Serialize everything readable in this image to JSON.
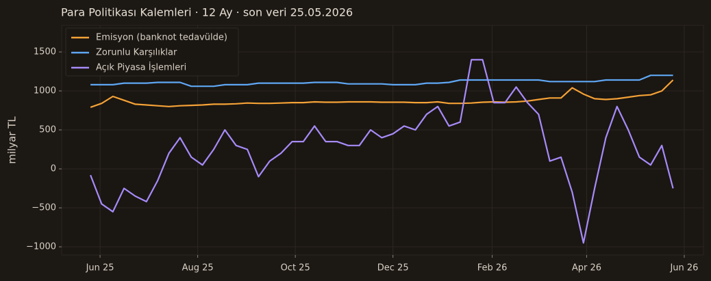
{
  "chart_data": {
    "type": "line",
    "title": "Para Politikası Kalemleri · 12 Ay · son veri 25.05.2026",
    "ylabel": "milyar TL",
    "x": [
      "2025-05-26",
      "2025-06-02",
      "2025-06-09",
      "2025-06-16",
      "2025-06-23",
      "2025-06-30",
      "2025-07-07",
      "2025-07-14",
      "2025-07-21",
      "2025-07-28",
      "2025-08-04",
      "2025-08-11",
      "2025-08-18",
      "2025-08-25",
      "2025-09-01",
      "2025-09-08",
      "2025-09-15",
      "2025-09-22",
      "2025-09-29",
      "2025-10-06",
      "2025-10-13",
      "2025-10-20",
      "2025-10-27",
      "2025-11-03",
      "2025-11-10",
      "2025-11-17",
      "2025-11-24",
      "2025-12-01",
      "2025-12-08",
      "2025-12-15",
      "2025-12-22",
      "2025-12-29",
      "2026-01-05",
      "2026-01-12",
      "2026-01-19",
      "2026-01-26",
      "2026-02-02",
      "2026-02-09",
      "2026-02-16",
      "2026-02-23",
      "2026-03-02",
      "2026-03-09",
      "2026-03-16",
      "2026-03-23",
      "2026-03-30",
      "2026-04-06",
      "2026-04-13",
      "2026-04-20",
      "2026-04-27",
      "2026-05-04",
      "2026-05-11",
      "2026-05-18",
      "2026-05-25"
    ],
    "series": [
      {
        "name": "Emisyon (banknot tedavülde)",
        "color": "#f5a236",
        "values": [
          790,
          840,
          930,
          880,
          830,
          820,
          810,
          800,
          810,
          815,
          820,
          830,
          830,
          835,
          845,
          840,
          840,
          845,
          850,
          850,
          860,
          855,
          855,
          860,
          860,
          860,
          855,
          855,
          855,
          850,
          850,
          860,
          840,
          840,
          845,
          855,
          860,
          855,
          860,
          870,
          890,
          910,
          910,
          1040,
          960,
          900,
          890,
          900,
          920,
          940,
          950,
          1000,
          1140
        ]
      },
      {
        "name": "Zorunlu Karşılıklar",
        "color": "#5fa8f5",
        "values": [
          1080,
          1080,
          1080,
          1100,
          1100,
          1100,
          1110,
          1110,
          1110,
          1060,
          1060,
          1060,
          1080,
          1080,
          1080,
          1100,
          1100,
          1100,
          1100,
          1100,
          1110,
          1110,
          1110,
          1090,
          1090,
          1090,
          1090,
          1080,
          1080,
          1080,
          1100,
          1100,
          1110,
          1140,
          1140,
          1140,
          1140,
          1140,
          1140,
          1140,
          1140,
          1120,
          1120,
          1120,
          1120,
          1120,
          1140,
          1140,
          1140,
          1140,
          1200,
          1200,
          1200
        ]
      },
      {
        "name": "Açık Piyasa İşlemleri",
        "color": "#a78bfa",
        "values": [
          -80,
          -450,
          -550,
          -250,
          -350,
          -420,
          -150,
          200,
          400,
          150,
          50,
          250,
          500,
          300,
          250,
          -100,
          100,
          200,
          350,
          350,
          550,
          350,
          350,
          300,
          300,
          500,
          400,
          450,
          550,
          500,
          700,
          800,
          550,
          600,
          1400,
          1400,
          850,
          850,
          1050,
          850,
          700,
          100,
          150,
          -300,
          -950,
          -250,
          400,
          800,
          500,
          150,
          50,
          300,
          -250
        ]
      }
    ],
    "xlim": [
      "2025-05-08",
      "2026-06-13"
    ],
    "xticks": [
      {
        "value": "2025-06-01",
        "label": "Jun 25"
      },
      {
        "value": "2025-08-01",
        "label": "Aug 25"
      },
      {
        "value": "2025-10-01",
        "label": "Oct 25"
      },
      {
        "value": "2025-12-01",
        "label": "Dec 25"
      },
      {
        "value": "2026-02-01",
        "label": "Feb 26"
      },
      {
        "value": "2026-04-01",
        "label": "Apr 26"
      },
      {
        "value": "2026-06-01",
        "label": "Jun 26"
      }
    ],
    "ylim": [
      -1105,
      1842
    ],
    "yticks": [
      {
        "value": -1000,
        "label": "−1000"
      },
      {
        "value": -500,
        "label": "−500"
      },
      0,
      500,
      1000,
      1500
    ],
    "grid": true,
    "legend": "upper left"
  }
}
